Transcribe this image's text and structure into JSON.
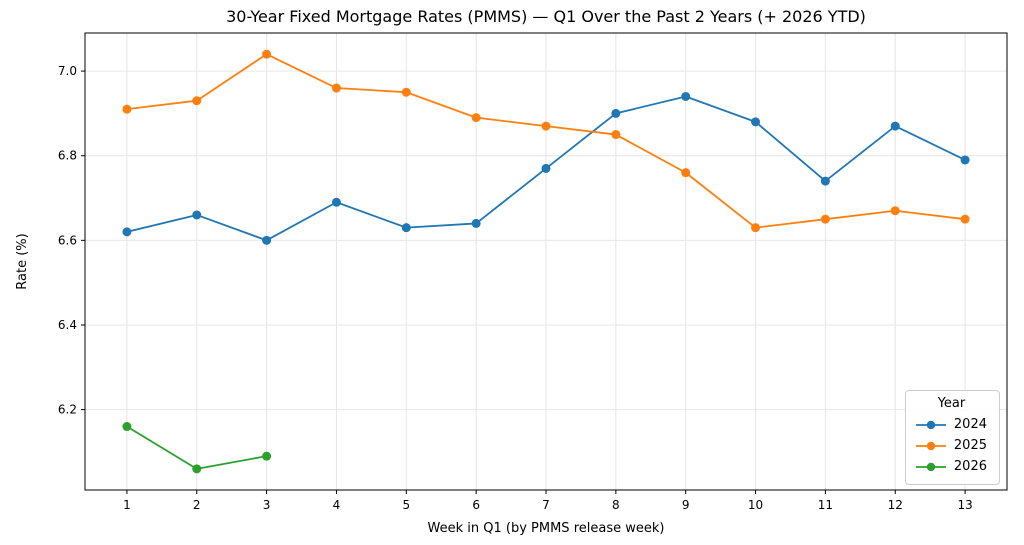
{
  "chart_data": {
    "type": "line",
    "title": "30-Year Fixed Mortgage Rates (PMMS) — Q1 Over the Past 2 Years (+ 2026 YTD)",
    "xlabel": "Week in Q1 (by PMMS release week)",
    "ylabel": "Rate (%)",
    "xlim": [
      0.4,
      13.6
    ],
    "ylim": [
      6.01,
      7.09
    ],
    "xticks": [
      1,
      2,
      3,
      4,
      5,
      6,
      7,
      8,
      9,
      10,
      11,
      12,
      13
    ],
    "yticks": [
      6.2,
      6.4,
      6.6,
      6.8,
      7.0
    ],
    "grid": true,
    "legend": {
      "title": "Year",
      "position": "lower right"
    },
    "series": [
      {
        "name": "2024",
        "color": "#1f77b4",
        "x": [
          1,
          2,
          3,
          4,
          5,
          6,
          7,
          8,
          9,
          10,
          11,
          12,
          13
        ],
        "values": [
          6.62,
          6.66,
          6.6,
          6.69,
          6.63,
          6.64,
          6.77,
          6.9,
          6.94,
          6.88,
          6.74,
          6.87,
          6.79
        ]
      },
      {
        "name": "2025",
        "color": "#ff7f0e",
        "x": [
          1,
          2,
          3,
          4,
          5,
          6,
          7,
          8,
          9,
          10,
          11,
          12,
          13
        ],
        "values": [
          6.91,
          6.93,
          7.04,
          6.96,
          6.95,
          6.89,
          6.87,
          6.85,
          6.76,
          6.63,
          6.65,
          6.67,
          6.65
        ]
      },
      {
        "name": "2026",
        "color": "#2ca02c",
        "x": [
          1,
          2,
          3
        ],
        "values": [
          6.16,
          6.06,
          6.09
        ]
      }
    ],
    "style": {
      "grid_color": "#e6e6e6",
      "spine_color": "#000000",
      "tick_label_color": "#000000",
      "background": "#ffffff"
    }
  }
}
